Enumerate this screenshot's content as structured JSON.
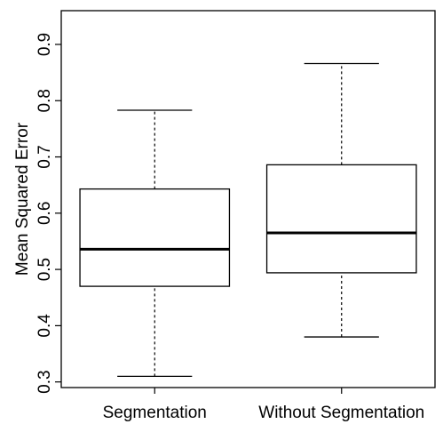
{
  "chart_data": {
    "type": "boxplot",
    "title": "",
    "xlabel": "",
    "ylabel": "Mean Squared Error",
    "ylim": [
      0.29,
      0.96
    ],
    "yticks": [
      0.3,
      0.4,
      0.5,
      0.6,
      0.7,
      0.8,
      0.9
    ],
    "ytick_labels": [
      "0.3",
      "0.4",
      "0.5",
      "0.6",
      "0.7",
      "0.8",
      "0.9"
    ],
    "categories": [
      "Segmentation",
      "Without Segmentation"
    ],
    "boxes": [
      {
        "category": "Segmentation",
        "whisker_low": 0.31,
        "q1": 0.47,
        "median": 0.536,
        "q3": 0.643,
        "whisker_high": 0.783
      },
      {
        "category": "Without Segmentation",
        "whisker_low": 0.38,
        "q1": 0.494,
        "median": 0.565,
        "q3": 0.686,
        "whisker_high": 0.866
      }
    ],
    "grid": false,
    "legend": "none",
    "colors": {
      "box_fill": "#ffffff",
      "stroke": "#000000"
    }
  }
}
